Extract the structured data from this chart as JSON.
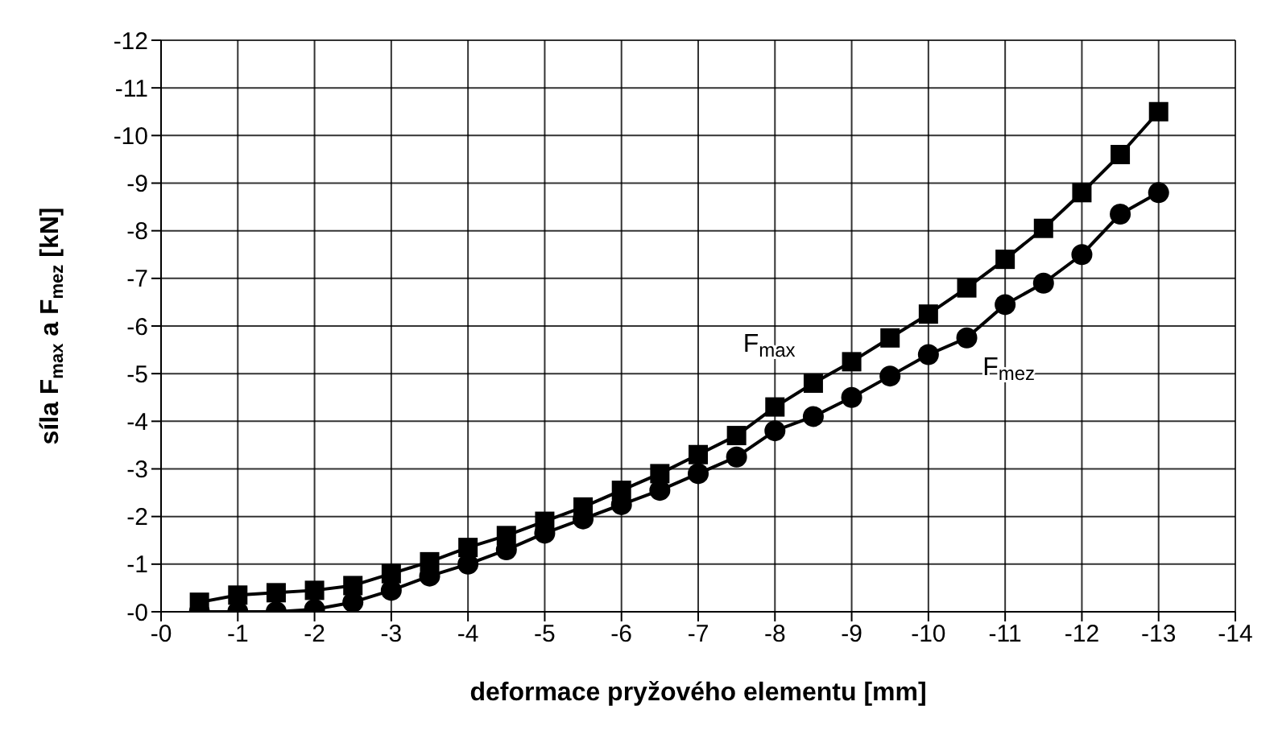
{
  "chart_data": {
    "type": "line",
    "xlabel": "deformace pryžového elementu [mm]",
    "ylabel": "síla F$_{max}$ a F$_{mez}$ [kN]",
    "x": [
      -0.5,
      -1,
      -1.5,
      -2,
      -2.5,
      -3,
      -3.5,
      -4,
      -4.5,
      -5,
      -5.5,
      -6,
      -6.5,
      -7,
      -7.5,
      -8,
      -8.5,
      -9,
      -9.5,
      -10,
      -10.5,
      -11,
      -11.5,
      -12,
      -12.5,
      -13
    ],
    "series": [
      {
        "name": "F$_{max}$",
        "color": "#000000",
        "marker": "square",
        "values": [
          -0.2,
          -0.35,
          -0.4,
          -0.45,
          -0.55,
          -0.8,
          -1.05,
          -1.35,
          -1.6,
          -1.9,
          -2.2,
          -2.55,
          -2.9,
          -3.3,
          -3.7,
          -4.3,
          -4.8,
          -5.25,
          -5.75,
          -6.25,
          -6.8,
          -7.4,
          -8.05,
          -8.8,
          -9.6,
          -10.5
        ]
      },
      {
        "name": "F$_{mez}$",
        "color": "#000000",
        "marker": "circle",
        "values": [
          0,
          0,
          0,
          -0.05,
          -0.2,
          -0.45,
          -0.75,
          -1,
          -1.3,
          -1.65,
          -1.95,
          -2.25,
          -2.55,
          -2.9,
          -3.25,
          -3.8,
          -4.1,
          -4.5,
          -4.95,
          -5.4,
          -5.75,
          -6.45,
          -6.9,
          -7.5,
          -8.35,
          -8.8
        ]
      }
    ],
    "xlim": [
      0,
      -14
    ],
    "xticks": [
      {
        "value": 0,
        "label": "-0"
      },
      -1,
      -2,
      -3,
      -4,
      -5,
      -6,
      -7,
      -8,
      -9,
      -10,
      -11,
      -12,
      -13,
      -14
    ],
    "ylim": [
      0,
      -12
    ],
    "yticks": [
      {
        "value": 0,
        "label": "-0"
      },
      -1,
      -2,
      -3,
      -4,
      -5,
      -6,
      -7,
      -8,
      -9,
      -10,
      -11,
      -12
    ],
    "grid": true,
    "line_style": "solid"
  }
}
